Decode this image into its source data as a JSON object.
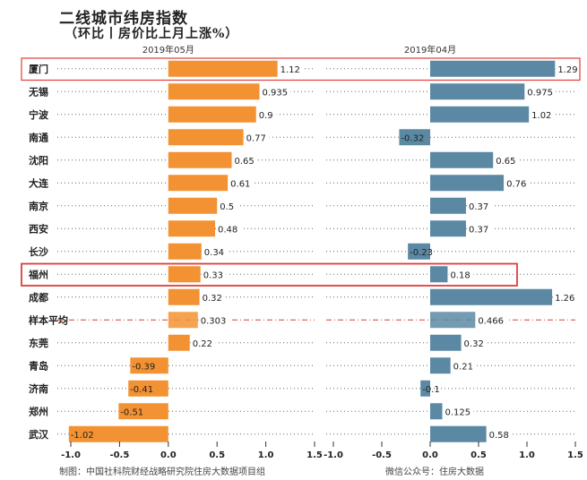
{
  "title": "二线城市纬房指数",
  "subtitle": "（环比丨房价比上月上涨%）",
  "footer_left": "制图：中国社科院财经战略研究院住房大数据项目组",
  "footer_right": "微信公众号：住房大数据",
  "colors": {
    "panel_left": "#F39232",
    "panel_right": "#5B89A4",
    "avg_line": "#D6403A",
    "highlight_box": "#E03C3C",
    "grid_dots": "#666666"
  },
  "chart_data": [
    {
      "type": "bar",
      "orientation": "horizontal",
      "title": "2019年05月",
      "categories": [
        "厦门",
        "无锡",
        "宁波",
        "南通",
        "沈阳",
        "大连",
        "南京",
        "西安",
        "长沙",
        "福州",
        "成都",
        "样本平均",
        "东莞",
        "青岛",
        "济南",
        "郑州",
        "武汉"
      ],
      "values": [
        1.12,
        0.935,
        0.9,
        0.77,
        0.65,
        0.61,
        0.5,
        0.48,
        0.34,
        0.33,
        0.32,
        0.303,
        0.22,
        -0.39,
        -0.41,
        -0.51,
        -1.02
      ],
      "value_labels": [
        "1.12",
        "0.935",
        "0.9",
        "0.77",
        "0.65",
        "0.61",
        "0.5",
        "0.48",
        "0.34",
        "0.33",
        "0.32",
        "0.303",
        "0.22",
        "-0.39",
        "-0.41",
        "-0.51",
        "-1.02"
      ],
      "xlim": [
        -1.0,
        1.5
      ],
      "xticks": [
        "-1.0",
        "-0.5",
        "0.0",
        "0.5",
        "1.0",
        "1.5"
      ],
      "average_category": "样本平均",
      "highlighted_categories": [
        "厦门",
        "福州"
      ]
    },
    {
      "type": "bar",
      "orientation": "horizontal",
      "title": "2019年04月",
      "categories": [
        "厦门",
        "无锡",
        "宁波",
        "南通",
        "沈阳",
        "大连",
        "南京",
        "西安",
        "长沙",
        "福州",
        "成都",
        "样本平均",
        "东莞",
        "青岛",
        "济南",
        "郑州",
        "武汉"
      ],
      "values": [
        1.29,
        0.975,
        1.02,
        -0.32,
        0.65,
        0.76,
        0.37,
        0.37,
        -0.23,
        0.18,
        1.26,
        0.466,
        0.32,
        0.21,
        -0.1,
        0.125,
        0.58
      ],
      "value_labels": [
        "1.29",
        "0.975",
        "1.02",
        "-0.32",
        "0.65",
        "0.76",
        "0.37",
        "0.37",
        "-0.23",
        "0.18",
        "1.26",
        "0.466",
        "0.32",
        "0.21",
        "-0.1",
        "0.125",
        "0.58"
      ],
      "xlim": [
        -1.0,
        1.5
      ],
      "xticks": [
        "-1.0",
        "-0.5",
        "0.0",
        "0.5",
        "1.0",
        "1.5"
      ],
      "average_category": "样本平均",
      "highlighted_categories": [
        "厦门",
        "福州"
      ]
    }
  ]
}
